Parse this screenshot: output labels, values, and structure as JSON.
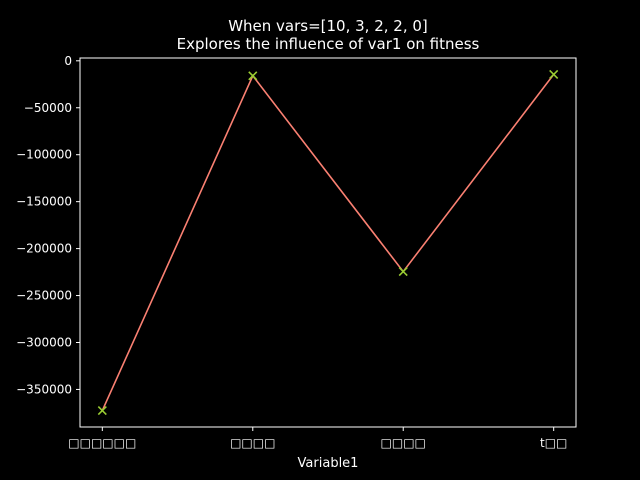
{
  "chart_data": {
    "type": "line",
    "title": "When vars=[10, 3, 2, 2, 0]",
    "subtitle": "Explores the influence of var1 on fitness",
    "xlabel": "Variable1",
    "ylabel": "",
    "categories": [
      "□□□□□□",
      "□□□□",
      "□□□□",
      "t□□"
    ],
    "series": [
      {
        "values": [
          -372500,
          -16000,
          -224500,
          -14500
        ]
      }
    ],
    "ylim": [
      -390000,
      3000
    ],
    "yticks": [
      0,
      -50000,
      -100000,
      -150000,
      -200000,
      -250000,
      -300000,
      -350000
    ],
    "ytick_labels": [
      "0",
      "−50000",
      "−100000",
      "−150000",
      "−200000",
      "−250000",
      "−300000",
      "−350000"
    ],
    "grid": false,
    "line_color": "#fa8072",
    "marker_color": "#9acd32",
    "marker": "x",
    "background": "#000000",
    "foreground": "#ffffff"
  }
}
